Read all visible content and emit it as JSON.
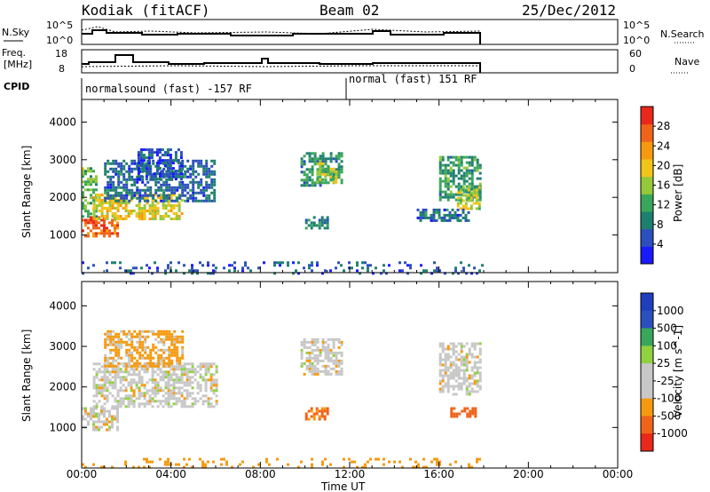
{
  "header": {
    "station": "Kodiak (fitACF)",
    "beam": "Beam 02",
    "date": "25/Dec/2012"
  },
  "left_labels": {
    "nsky": "N.Sky",
    "freq": "Freq.",
    "freq_unit": "[MHz]",
    "cpid": "CPID"
  },
  "right_labels": {
    "nsearch": "N.Search",
    "nave": "Nave"
  },
  "noise_axis": {
    "left_ticks": [
      "10^5",
      "10^0"
    ],
    "right_ticks": [
      "10^5",
      "10^0"
    ]
  },
  "freq_axis": {
    "left_ticks": [
      "18",
      "8"
    ],
    "right_ticks": [
      "60",
      "0"
    ]
  },
  "cpid": [
    {
      "label": "normalsound (fast) -157 RF",
      "start_hour": 0
    },
    {
      "label": "normal (fast) 151 RF",
      "start_hour": 12
    }
  ],
  "colors": {
    "power": [
      "#1a1aff",
      "#2c4fbd",
      "#1f7f6e",
      "#3aa65a",
      "#95c93a",
      "#f0c419",
      "#f59a10",
      "#f0641a",
      "#e8281a"
    ],
    "velocity": [
      "#e8281a",
      "#f0641a",
      "#f59a10",
      "#c7c7c7",
      "#c7c7c7",
      "#8fd13f",
      "#3aa65a",
      "#2c4fbd",
      "#1f3fbf"
    ]
  },
  "chart_data": [
    {
      "type": "heatmap",
      "name": "power",
      "ylabel": "Slant Range [km]",
      "ylim": [
        0,
        4600
      ],
      "yticks": [
        1000,
        2000,
        3000,
        4000
      ],
      "xlim": [
        0,
        24
      ],
      "colorbar_label": "Power [dB]",
      "colorbar_ticks": [
        4,
        8,
        12,
        16,
        20,
        24,
        28
      ],
      "colorbar_range": [
        0,
        32
      ],
      "regions": [
        {
          "x": [
            0.0,
            1.6
          ],
          "y": [
            950,
            1500
          ],
          "value": 27
        },
        {
          "x": [
            0.0,
            0.6
          ],
          "y": [
            1500,
            2800
          ],
          "value": 14
        },
        {
          "x": [
            0.5,
            4.5
          ],
          "y": [
            1400,
            2100
          ],
          "value": 19
        },
        {
          "x": [
            1.0,
            6.0
          ],
          "y": [
            1900,
            3000
          ],
          "value": 7
        },
        {
          "x": [
            2.5,
            4.5
          ],
          "y": [
            2500,
            3300
          ],
          "value": 5
        },
        {
          "x": [
            9.8,
            11.6
          ],
          "y": [
            2300,
            3200
          ],
          "value": 10
        },
        {
          "x": [
            10.5,
            11.4
          ],
          "y": [
            2400,
            3000
          ],
          "value": 16
        },
        {
          "x": [
            10.0,
            11.0
          ],
          "y": [
            1200,
            1500
          ],
          "value": 9
        },
        {
          "x": [
            16.0,
            17.9
          ],
          "y": [
            1900,
            3100
          ],
          "value": 11
        },
        {
          "x": [
            16.8,
            17.8
          ],
          "y": [
            1700,
            2300
          ],
          "value": 17
        },
        {
          "x": [
            15.0,
            17.3
          ],
          "y": [
            1400,
            1700
          ],
          "value": 7
        },
        {
          "x": [
            0.0,
            18.0
          ],
          "y": [
            0,
            300
          ],
          "value": 6
        }
      ]
    },
    {
      "type": "heatmap",
      "name": "velocity",
      "ylabel": "Slant Range [km]",
      "ylim": [
        0,
        4600
      ],
      "yticks": [
        1000,
        2000,
        3000,
        4000
      ],
      "xlim": [
        0,
        24
      ],
      "xlabel": "Time UT",
      "xticks": [
        "00:00",
        "04:00",
        "08:00",
        "12:00",
        "16:00",
        "20:00",
        "00:00"
      ],
      "colorbar_label": "Velocity [m s^-1]",
      "colorbar_ticks": [
        "1000",
        "500",
        "100",
        "25",
        "-25",
        "-100",
        "-500",
        "-1000"
      ],
      "regions": [
        {
          "x": [
            0.0,
            1.6
          ],
          "y": [
            950,
            1500
          ],
          "value": 0
        },
        {
          "x": [
            0.5,
            6.0
          ],
          "y": [
            1500,
            2600
          ],
          "value": 0
        },
        {
          "x": [
            1.0,
            4.5
          ],
          "y": [
            2500,
            3400
          ],
          "value": -40
        },
        {
          "x": [
            9.8,
            11.6
          ],
          "y": [
            2300,
            3200
          ],
          "value": 0
        },
        {
          "x": [
            10.0,
            11.0
          ],
          "y": [
            1200,
            1500
          ],
          "value": -120
        },
        {
          "x": [
            16.0,
            17.9
          ],
          "y": [
            1800,
            3100
          ],
          "value": 0
        },
        {
          "x": [
            16.5,
            17.6
          ],
          "y": [
            1250,
            1500
          ],
          "value": -150
        },
        {
          "x": [
            0.0,
            18.0
          ],
          "y": [
            0,
            250
          ],
          "value": -60
        }
      ]
    }
  ]
}
